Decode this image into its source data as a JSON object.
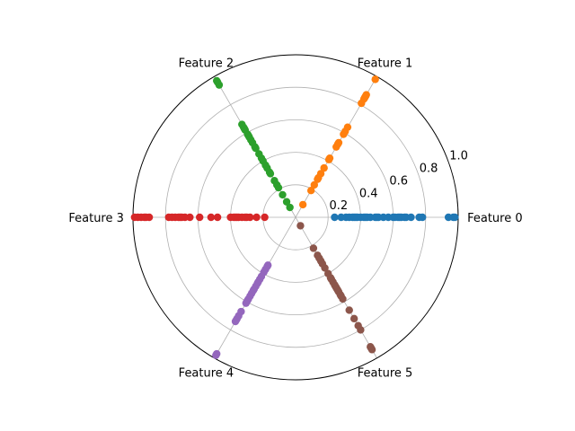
{
  "chart_data": {
    "type": "scatter",
    "projection": "polar",
    "radial_range": [
      0,
      1.0
    ],
    "radial_ticks": [
      "0.2",
      "0.4",
      "0.6",
      "0.8",
      "1.0"
    ],
    "grid": true,
    "legend": "none",
    "colors": [
      "#1f77b4",
      "#ff7f0e",
      "#2ca02c",
      "#d62728",
      "#9467bd",
      "#8c564b"
    ],
    "categories": [
      "Feature 0",
      "Feature 1",
      "Feature 2",
      "Feature 3",
      "Feature 4",
      "Feature 5"
    ],
    "series": [
      {
        "angle_deg": 0,
        "values": [
          0.24,
          0.28,
          0.31,
          0.33,
          0.35,
          0.36,
          0.37,
          0.38,
          0.4,
          0.42,
          0.43,
          0.44,
          0.46,
          0.49,
          0.5,
          0.51,
          0.54,
          0.57,
          0.6,
          0.61,
          0.63,
          0.64,
          0.65,
          0.67,
          0.68,
          0.71,
          0.76,
          0.78,
          0.94,
          0.97,
          0.98
        ]
      },
      {
        "angle_deg": 60,
        "values": [
          0.09,
          0.19,
          0.23,
          0.27,
          0.28,
          0.31,
          0.35,
          0.41,
          0.42,
          0.5,
          0.52,
          0.53,
          0.59,
          0.61,
          0.64,
          0.81,
          0.84,
          0.85,
          0.86,
          0.87,
          0.98
        ]
      },
      {
        "angle_deg": 120,
        "values": [
          0.07,
          0.11,
          0.16,
          0.21,
          0.23,
          0.26,
          0.31,
          0.32,
          0.35,
          0.37,
          0.4,
          0.42,
          0.45,
          0.49,
          0.5,
          0.53,
          0.55,
          0.57,
          0.58,
          0.59,
          0.62,
          0.63,
          0.64,
          0.66,
          0.94,
          0.96,
          0.97
        ]
      },
      {
        "angle_deg": 180,
        "values": [
          0.19,
          0.24,
          0.28,
          0.3,
          0.31,
          0.33,
          0.35,
          0.36,
          0.37,
          0.38,
          0.4,
          0.48,
          0.52,
          0.59,
          0.65,
          0.68,
          0.7,
          0.71,
          0.72,
          0.74,
          0.76,
          0.78,
          0.9,
          0.92,
          0.93,
          0.95,
          0.97,
          0.99
        ]
      },
      {
        "angle_deg": 240,
        "values": [
          0.34,
          0.35,
          0.37,
          0.39,
          0.42,
          0.44,
          0.46,
          0.47,
          0.49,
          0.51,
          0.52,
          0.54,
          0.56,
          0.58,
          0.59,
          0.6,
          0.61,
          0.67,
          0.7,
          0.72,
          0.73,
          0.74,
          0.97,
          0.98
        ]
      },
      {
        "angle_deg": 300,
        "values": [
          0.06,
          0.22,
          0.27,
          0.29,
          0.31,
          0.33,
          0.36,
          0.4,
          0.43,
          0.44,
          0.46,
          0.48,
          0.49,
          0.5,
          0.51,
          0.52,
          0.53,
          0.55,
          0.56,
          0.58,
          0.66,
          0.72,
          0.77,
          0.8,
          0.92,
          0.93,
          0.94
        ]
      }
    ]
  }
}
